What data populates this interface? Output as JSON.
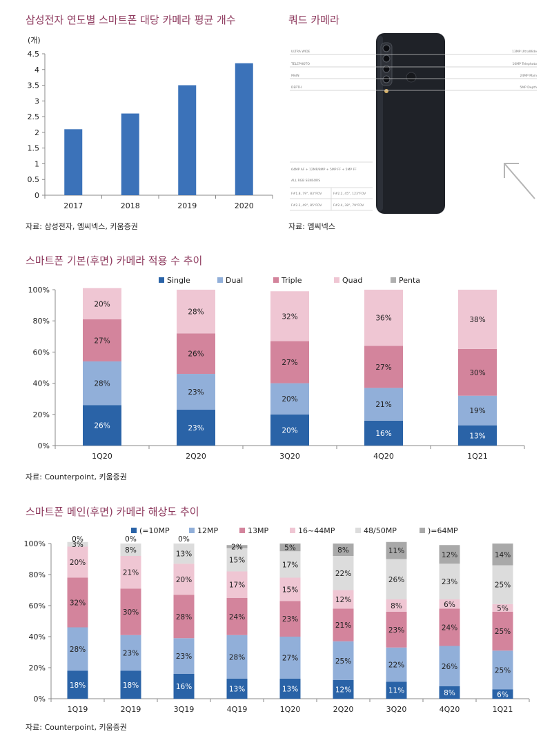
{
  "chart_data": [
    {
      "type": "bar",
      "title": "삼성전자 연도별 스마트폰 대당 카메라 평균 개수",
      "unit_label": "(개)",
      "categories": [
        "2017",
        "2018",
        "2019",
        "2020"
      ],
      "values": [
        2.1,
        2.6,
        3.5,
        4.2
      ],
      "ylim": [
        0,
        4.5
      ],
      "yticks": [
        "0",
        "0.5",
        "1",
        "1.5",
        "2",
        "2.5",
        "3",
        "3.5",
        "4",
        "4.5"
      ],
      "grid": false,
      "colors": {
        "bar": "#3b72b9"
      },
      "source": "자료: 삼성전자, 엠씨넥스, 키움증권"
    },
    {
      "type": "bar",
      "stacked": true,
      "title": "스마트폰 기본(후면) 카메라 적용 수 추이",
      "categories": [
        "1Q20",
        "2Q20",
        "3Q20",
        "4Q20",
        "1Q21"
      ],
      "ylim": [
        0,
        100
      ],
      "yticks": [
        "0%",
        "20%",
        "40%",
        "60%",
        "80%",
        "100%"
      ],
      "legend": "top",
      "series": [
        {
          "name": "Single",
          "color": "#2a63a7",
          "values": [
            26,
            23,
            20,
            16,
            13
          ],
          "labels": [
            "26%",
            "23%",
            "20%",
            "16%",
            "13%"
          ]
        },
        {
          "name": "Dual",
          "color": "#91afd9",
          "values": [
            28,
            23,
            20,
            21,
            19
          ],
          "labels": [
            "28%",
            "23%",
            "20%",
            "21%",
            "19%"
          ]
        },
        {
          "name": "Triple",
          "color": "#d3849c",
          "values": [
            27,
            26,
            27,
            27,
            30
          ],
          "labels": [
            "27%",
            "26%",
            "27%",
            "27%",
            "30%"
          ]
        },
        {
          "name": "Quad",
          "color": "#efc6d3",
          "values": [
            20,
            28,
            32,
            36,
            38
          ],
          "labels": [
            "20%",
            "28%",
            "32%",
            "36%",
            "38%"
          ]
        },
        {
          "name": "Penta",
          "color": "#b0b0b0",
          "values": [
            0,
            0,
            0,
            0,
            0
          ],
          "labels": [
            "",
            "",
            "",
            "",
            ""
          ]
        }
      ],
      "source": "자료: Counterpoint, 키움증권"
    },
    {
      "type": "bar",
      "stacked": true,
      "title": "스마트폰 메인(후면) 카메라 해상도 추이",
      "categories": [
        "1Q19",
        "2Q19",
        "3Q19",
        "4Q19",
        "1Q20",
        "2Q20",
        "3Q20",
        "4Q20",
        "1Q21"
      ],
      "ylim": [
        0,
        100
      ],
      "yticks": [
        "0%",
        "20%",
        "40%",
        "60%",
        "80%",
        "100%"
      ],
      "legend": "top",
      "series": [
        {
          "name": "(=10MP",
          "color": "#2a63a7",
          "values": [
            18,
            18,
            16,
            13,
            13,
            12,
            11,
            8,
            6
          ],
          "labels": [
            "18%",
            "18%",
            "16%",
            "13%",
            "13%",
            "12%",
            "11%",
            "8%",
            "6%"
          ]
        },
        {
          "name": "12MP",
          "color": "#91afd9",
          "values": [
            28,
            23,
            23,
            28,
            27,
            25,
            22,
            26,
            25
          ],
          "labels": [
            "28%",
            "23%",
            "23%",
            "28%",
            "27%",
            "25%",
            "22%",
            "26%",
            "25%"
          ]
        },
        {
          "name": "13MP",
          "color": "#d3849c",
          "values": [
            32,
            30,
            28,
            24,
            23,
            21,
            23,
            24,
            25
          ],
          "labels": [
            "32%",
            "30%",
            "28%",
            "24%",
            "23%",
            "21%",
            "23%",
            "24%",
            "25%"
          ]
        },
        {
          "name": "16~44MP",
          "color": "#efc6d3",
          "values": [
            20,
            21,
            20,
            17,
            15,
            12,
            8,
            6,
            5
          ],
          "labels": [
            "20%",
            "21%",
            "20%",
            "17%",
            "15%",
            "12%",
            "8%",
            "6%",
            "5%"
          ]
        },
        {
          "name": "48/50MP",
          "color": "#dcdcdc",
          "values": [
            3,
            8,
            13,
            15,
            17,
            22,
            26,
            23,
            25
          ],
          "labels": [
            "3%",
            "8%",
            "13%",
            "15%",
            "17%",
            "22%",
            "26%",
            "23%",
            "25%"
          ]
        },
        {
          "name": ")=64MP",
          "color": "#a9a9a9",
          "values": [
            0,
            0,
            0,
            2,
            5,
            8,
            11,
            12,
            14
          ],
          "labels": [
            "0%",
            "0%",
            "0%",
            "2%",
            "5%",
            "8%",
            "11%",
            "12%",
            "14%"
          ]
        }
      ],
      "source": "자료: Counterpoint, 키움증권"
    }
  ],
  "image_panel": {
    "title": "쿼드 카메라",
    "source": "자료: 엠씨넥스",
    "left_labels": [
      "ULTRA WIDE",
      "TELEPHOTO",
      "MAIN",
      "DEPTH"
    ],
    "right_labels": [
      "13MP UltraWide",
      "10MP Telephoto",
      "24MP Main",
      "5MP Depth"
    ],
    "spec_lines": [
      "64MP AF + 12MP/8MP + 5MP FF + 5MP FF",
      "ALL RGB SENSORS"
    ],
    "spec_table": [
      "F#1.8, 79°, 83°FOV",
      "F#2.2, 45°, 123°FOV",
      "F#2.2, 49°, 85°FOV",
      "F#2.4, 38°, 79°FOV"
    ]
  }
}
